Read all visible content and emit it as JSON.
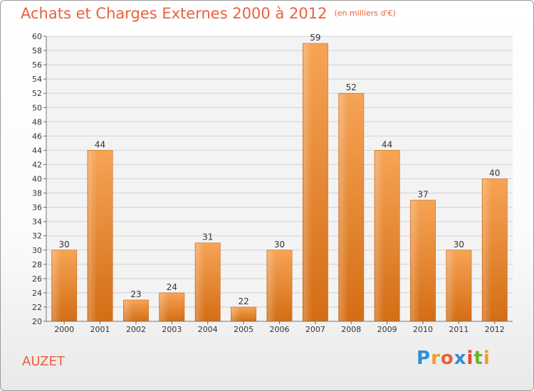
{
  "title": "Achats et Charges Externes 2000 à 2012",
  "subtitle": "(en milliers d'€)",
  "commune": "AUZET",
  "logo": {
    "letters": [
      "P",
      "r",
      "o",
      "x",
      "i",
      "t",
      "i"
    ],
    "colors": [
      "#2f8fd8",
      "#f39a2b",
      "#e8613c",
      "#2f8fd8",
      "#e4463b",
      "#6ab42f",
      "#f39a2b"
    ]
  },
  "chart_data": {
    "type": "bar",
    "categories": [
      "2000",
      "2001",
      "2002",
      "2003",
      "2004",
      "2005",
      "2006",
      "2007",
      "2008",
      "2009",
      "2010",
      "2011",
      "2012"
    ],
    "values": [
      30,
      44,
      23,
      24,
      31,
      22,
      30,
      59,
      52,
      44,
      37,
      30,
      40
    ],
    "ylim": [
      20,
      60
    ],
    "yticks": [
      20,
      22,
      24,
      26,
      28,
      30,
      32,
      34,
      36,
      38,
      40,
      42,
      44,
      46,
      48,
      50,
      52,
      54,
      56,
      58,
      60
    ],
    "grid": true,
    "bar_color": "#e88a2e"
  }
}
